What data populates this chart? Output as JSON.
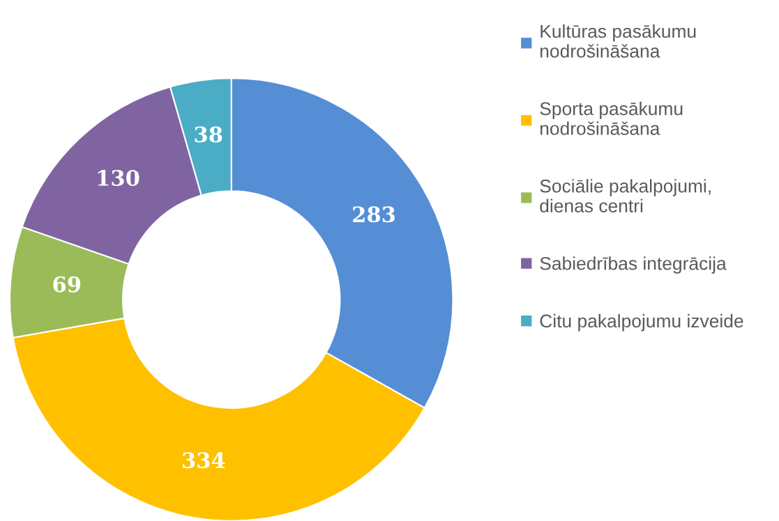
{
  "chart_data": {
    "type": "donut",
    "categories": [
      "Kultūras pasākumu\nnodrošināšana",
      "Sporta pasākumu\nnodrošināšana",
      "Sociālie pakalpojumi,\ndienas centri",
      "Sabiedrības integrācija",
      "Citu pakalpojumu izveide"
    ],
    "values": [
      283,
      334,
      69,
      130,
      38
    ],
    "colors": [
      "#558ed5",
      "#ffc000",
      "#9bbb59",
      "#8064a2",
      "#4bacc6"
    ],
    "data_labels": true,
    "legend": "right"
  }
}
